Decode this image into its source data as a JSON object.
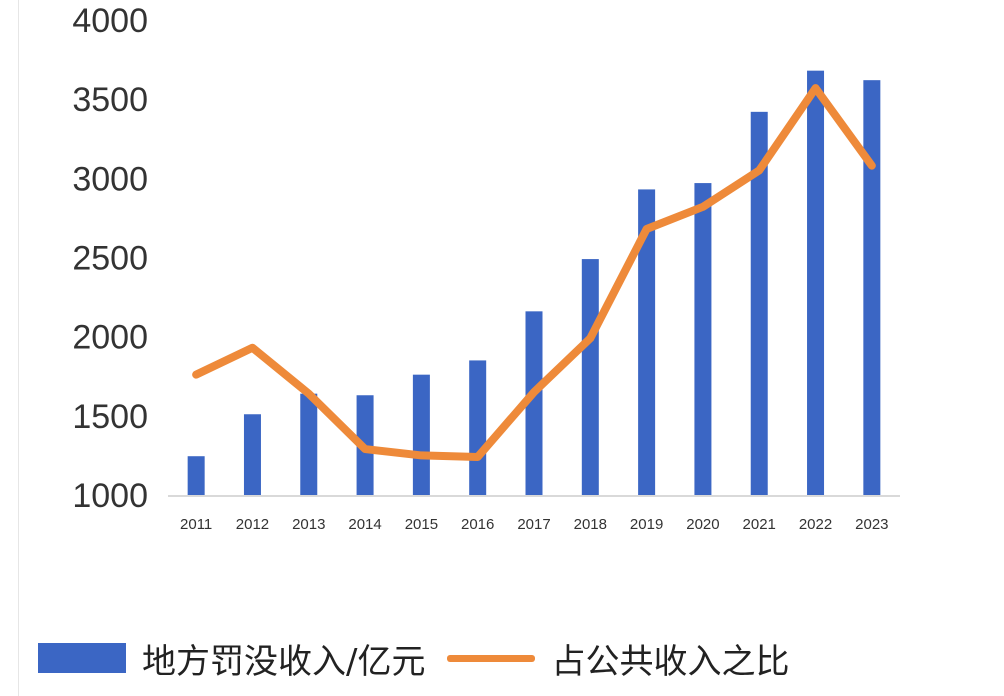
{
  "chart_data": {
    "type": "bar",
    "categories": [
      "2011",
      "2012",
      "2013",
      "2014",
      "2015",
      "2016",
      "2017",
      "2018",
      "2019",
      "2020",
      "2021",
      "2022",
      "2023"
    ],
    "series": [
      {
        "name": "地方罚没收入/亿元",
        "type": "bar",
        "color": "#3b66c4",
        "values": [
          1245,
          1510,
          1640,
          1630,
          1760,
          1850,
          2160,
          2490,
          2930,
          2970,
          3420,
          3680,
          3620
        ]
      },
      {
        "name": "占公共收入之比",
        "type": "line",
        "color": "#ee8a3a",
        "values": [
          1760,
          1930,
          1640,
          1290,
          1250,
          1240,
          1650,
          1990,
          2680,
          2820,
          3050,
          3570,
          3080
        ]
      }
    ],
    "yticks": [
      "1000",
      "1500",
      "2000",
      "2500",
      "3000",
      "3500",
      "4000"
    ],
    "ylim": [
      1000,
      4000
    ],
    "grid": false,
    "legend": "bottom"
  }
}
